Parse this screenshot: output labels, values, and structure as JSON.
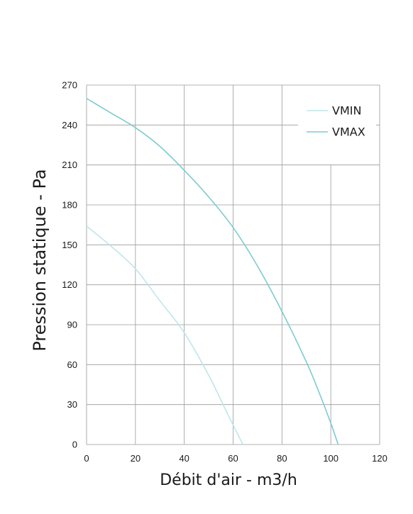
{
  "chart_data": {
    "type": "line",
    "title": "",
    "xlabel": "Débit d'air - m3/h",
    "ylabel": "Pression statique - Pa",
    "xlim": [
      0,
      120
    ],
    "ylim": [
      0,
      270
    ],
    "xticks": [
      0,
      20,
      40,
      60,
      80,
      100,
      120
    ],
    "yticks": [
      0,
      30,
      60,
      90,
      120,
      150,
      180,
      210,
      240,
      270
    ],
    "grid": true,
    "legend_position": "top-right",
    "series": [
      {
        "name": "VMIN",
        "color": "#bfe6e8",
        "points": [
          [
            0,
            164
          ],
          [
            10,
            149
          ],
          [
            20,
            132
          ],
          [
            30,
            108
          ],
          [
            40,
            84
          ],
          [
            50,
            52
          ],
          [
            58,
            22
          ],
          [
            64,
            0
          ]
        ]
      },
      {
        "name": "VMAX",
        "color": "#7ccbd0",
        "points": [
          [
            0,
            260
          ],
          [
            10,
            249
          ],
          [
            20,
            238
          ],
          [
            30,
            224
          ],
          [
            40,
            206
          ],
          [
            50,
            186
          ],
          [
            60,
            163
          ],
          [
            70,
            134
          ],
          [
            80,
            100
          ],
          [
            90,
            62
          ],
          [
            95,
            40
          ],
          [
            100,
            16
          ],
          [
            103,
            0
          ]
        ]
      }
    ]
  }
}
